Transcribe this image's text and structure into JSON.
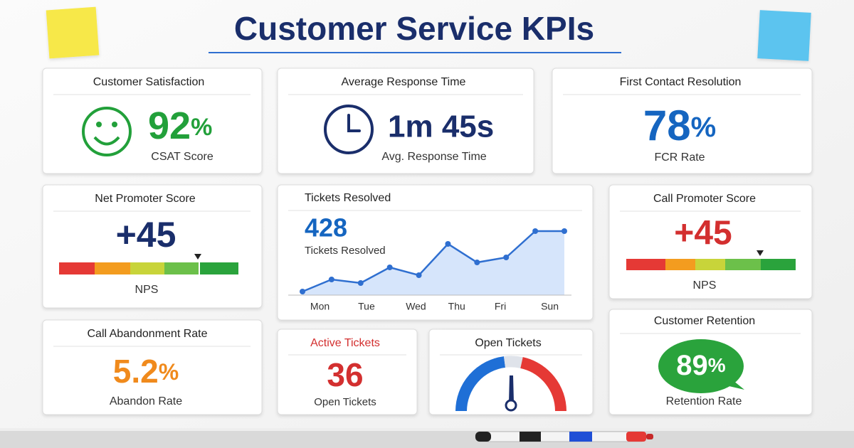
{
  "header": {
    "title": "Customer Service KPIs"
  },
  "cards": {
    "csat": {
      "title": "Customer Satisfaction",
      "value": "92",
      "unit": "%",
      "caption": "CSAT Score"
    },
    "response": {
      "title": "Average Response Time",
      "value": "1m 45s",
      "caption": "Avg. Response Time"
    },
    "fcr": {
      "title": "First Contact Resolution",
      "value": "78",
      "unit": "%",
      "caption": "FCR Rate"
    },
    "nps": {
      "title": "Net Promoter Score",
      "value": "+45",
      "caption": "NPS"
    },
    "tickets": {
      "title": "Tickets Resolved",
      "value": "428",
      "caption": "Tickets Resolved"
    },
    "cps": {
      "title": "Call Promoter Score",
      "value": "+45",
      "caption": "NPS"
    },
    "abandon": {
      "title": "Call Abandonment Rate",
      "value": "5.2",
      "unit": "%",
      "caption": "Abandon Rate"
    },
    "active": {
      "title": "Active Tickets",
      "value": "36",
      "caption": "Open Tickets"
    },
    "open": {
      "title": "Open Tickets"
    },
    "retention": {
      "title": "Customer Retention",
      "value": "89",
      "unit": "%",
      "caption": "Retention Rate"
    }
  },
  "chart_data": {
    "type": "line",
    "color": "#2f6fd0",
    "x": [
      0,
      1,
      2,
      3,
      4,
      5,
      6,
      7,
      8,
      9
    ],
    "values": [
      5,
      22,
      17,
      39,
      28,
      72,
      46,
      53,
      90,
      90
    ],
    "xlim": [
      0,
      9
    ],
    "ylim": [
      0,
      100
    ],
    "xticks": [
      {
        "value": 0.6,
        "label": "Mon"
      },
      {
        "value": 2.2,
        "label": "Tue"
      },
      {
        "value": 3.9,
        "label": "Wed"
      },
      {
        "value": 5.3,
        "label": "Thu"
      },
      {
        "value": 6.8,
        "label": "Fri"
      },
      {
        "value": 8.5,
        "label": "Sun"
      }
    ]
  }
}
